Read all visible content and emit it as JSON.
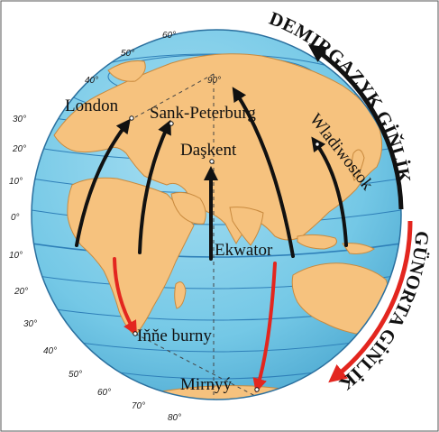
{
  "arc_labels": {
    "north": "DEMIRGAZYK GİŇLİK",
    "south": "GÜNORTA GİŇLİK"
  },
  "cities": {
    "london": "London",
    "sank_peterburg": "Sank-Peterburg",
    "daskent": "Daşkent",
    "wladiwostok": "Wladiwostok",
    "ekwator": "Ekwator",
    "inne_burny": "Iňňe burny",
    "mirnyy": "Mirnyý"
  },
  "latitude_labels": {
    "north": [
      "30°",
      "20°",
      "10°",
      "0°"
    ],
    "south": [
      "10°",
      "20°",
      "30°",
      "40°",
      "50°",
      "60°",
      "70°",
      "80°"
    ],
    "top": [
      "40°",
      "50°",
      "60°"
    ],
    "pole": "90°"
  },
  "colors": {
    "ocean": "#74c8e6",
    "land": "#f6c27e",
    "grid": "#2e7fb8",
    "north_arrow": "#111111",
    "south_arrow": "#e3261f",
    "frame": "#555555"
  }
}
